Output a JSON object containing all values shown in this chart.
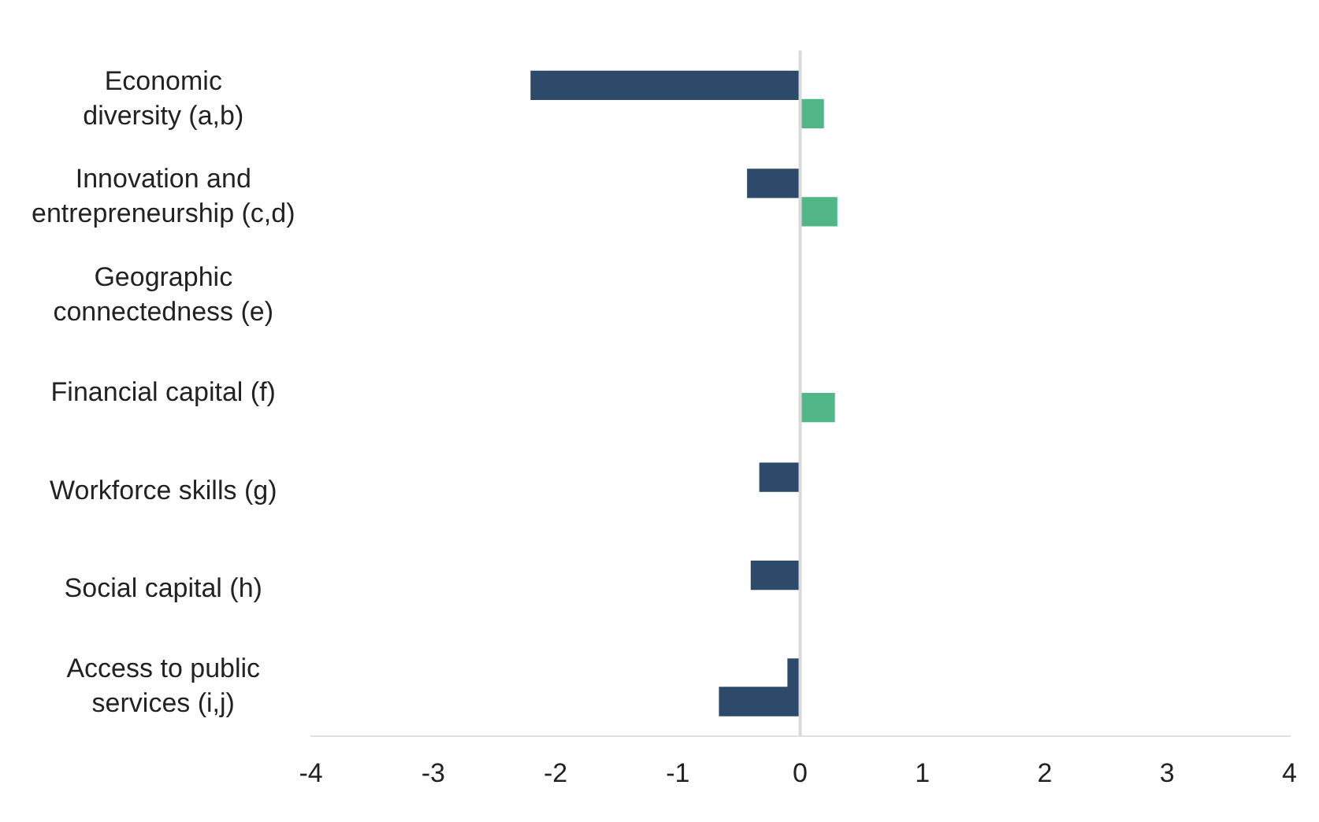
{
  "chart_data": {
    "type": "bar",
    "orientation": "horizontal",
    "categories": [
      "Economic diversity (a,b)",
      "Innovation and entrepreneurship (c,d)",
      "Geographic connectedness (e)",
      "Financial capital (f)",
      "Workforce skills (g)",
      "Social capital (h)",
      "Access to public services (i,j)"
    ],
    "series": [
      {
        "color": "#2e4a6b",
        "values": [
          -2.2,
          -0.43,
          null,
          null,
          -0.33,
          -0.4,
          -0.1
        ]
      },
      {
        "color": "#52b788",
        "colors": [
          "#52b788",
          "#52b788",
          null,
          "#52b788",
          null,
          null,
          "#2e4a6b"
        ],
        "values": [
          0.19,
          0.3,
          null,
          0.28,
          null,
          null,
          -0.66
        ]
      }
    ],
    "xlim": [
      -4,
      4
    ],
    "xticks": [
      -4,
      -3,
      -2,
      -1,
      0,
      1,
      2,
      3,
      4
    ],
    "ref_lines": [
      {
        "axis": "x",
        "value": 0,
        "color": "#d9d9d9"
      }
    ],
    "grid": false,
    "legend": false
  }
}
